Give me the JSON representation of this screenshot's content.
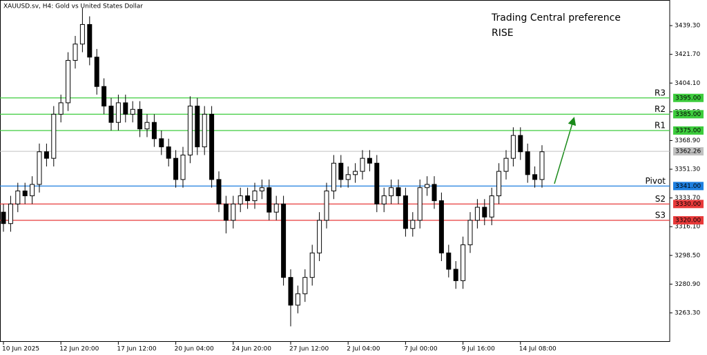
{
  "chart_data": {
    "type": "candlestick",
    "title": "XAUUSD.sv, H4:  Gold vs United States Dollar",
    "annotation": [
      "Trading Central preference",
      "RISE"
    ],
    "annotation_color": "#2ecc40",
    "up_color": "#ffffff",
    "down_color": "#000000",
    "categories": [
      "10 Jun 2025",
      null,
      null,
      null,
      null,
      null,
      null,
      null,
      "12 Jun 20:00",
      null,
      null,
      null,
      null,
      null,
      null,
      null,
      "17 Jun 12:00",
      null,
      null,
      null,
      null,
      null,
      null,
      null,
      "20 Jun 04:00",
      null,
      null,
      null,
      null,
      null,
      null,
      null,
      "24 Jun 20:00",
      null,
      null,
      null,
      null,
      null,
      null,
      null,
      "27 Jun 12:00",
      null,
      null,
      null,
      null,
      null,
      null,
      null,
      "2 Jul 04:00",
      null,
      null,
      null,
      null,
      null,
      null,
      null,
      "7 Jul 00:00",
      null,
      null,
      null,
      null,
      null,
      null,
      null,
      "9 Jul 16:00",
      null,
      null,
      null,
      null,
      null,
      null,
      null,
      "14 Jul 08:00",
      null,
      null,
      null
    ],
    "open": [
      3325,
      3318,
      3330,
      3338,
      3335,
      3342,
      3362,
      3358,
      3385,
      3392,
      3418,
      3428,
      3440,
      3420,
      3402,
      3390,
      3380,
      3392,
      3385,
      3388,
      3376,
      3380,
      3370,
      3365,
      3358,
      3345,
      3360,
      3390,
      3365,
      3385,
      3345,
      3330,
      3320,
      3330,
      3335,
      3332,
      3338,
      3340,
      3325,
      3330,
      3285,
      3268,
      3275,
      3285,
      3300,
      3320,
      3338,
      3355,
      3345,
      3348,
      3350,
      3358,
      3355,
      3330,
      3335,
      3340,
      3335,
      3315,
      3320,
      3340,
      3342,
      3332,
      3300,
      3290,
      3283,
      3305,
      3320,
      3328,
      3322,
      3335,
      3350,
      3358,
      3372,
      3362,
      3348,
      3345
    ],
    "high": [
      3330,
      3335,
      3343,
      3343,
      3347,
      3367,
      3367,
      3390,
      3397,
      3423,
      3433,
      3450,
      3445,
      3425,
      3407,
      3395,
      3397,
      3397,
      3393,
      3393,
      3385,
      3385,
      3375,
      3370,
      3363,
      3365,
      3396,
      3395,
      3390,
      3390,
      3350,
      3335,
      3335,
      3340,
      3340,
      3343,
      3345,
      3345,
      3335,
      3335,
      3290,
      3280,
      3290,
      3305,
      3325,
      3343,
      3360,
      3360,
      3353,
      3355,
      3363,
      3363,
      3360,
      3340,
      3345,
      3345,
      3340,
      3325,
      3345,
      3347,
      3347,
      3337,
      3305,
      3295,
      3310,
      3325,
      3333,
      3333,
      3340,
      3355,
      3363,
      3377,
      3377,
      3367,
      3353,
      3366
    ],
    "low": [
      3313,
      3313,
      3325,
      3330,
      3330,
      3337,
      3353,
      3353,
      3380,
      3387,
      3413,
      3423,
      3415,
      3397,
      3385,
      3375,
      3375,
      3380,
      3380,
      3371,
      3371,
      3365,
      3360,
      3353,
      3340,
      3340,
      3355,
      3360,
      3360,
      3340,
      3325,
      3312,
      3315,
      3325,
      3327,
      3327,
      3333,
      3320,
      3320,
      3280,
      3255,
      3263,
      3270,
      3280,
      3295,
      3315,
      3333,
      3340,
      3340,
      3343,
      3345,
      3350,
      3325,
      3325,
      3330,
      3330,
      3310,
      3310,
      3315,
      3335,
      3327,
      3295,
      3285,
      3278,
      3278,
      3300,
      3315,
      3317,
      3317,
      3330,
      3345,
      3353,
      3357,
      3343,
      3340,
      3340
    ],
    "close": [
      3318,
      3330,
      3338,
      3335,
      3342,
      3362,
      3358,
      3385,
      3392,
      3418,
      3428,
      3440,
      3420,
      3402,
      3390,
      3380,
      3392,
      3385,
      3388,
      3376,
      3380,
      3370,
      3365,
      3358,
      3345,
      3360,
      3390,
      3365,
      3385,
      3345,
      3330,
      3320,
      3330,
      3335,
      3332,
      3338,
      3340,
      3325,
      3330,
      3285,
      3268,
      3275,
      3285,
      3300,
      3320,
      3338,
      3355,
      3345,
      3348,
      3350,
      3358,
      3355,
      3330,
      3335,
      3340,
      3335,
      3315,
      3320,
      3340,
      3342,
      3332,
      3300,
      3290,
      3283,
      3305,
      3320,
      3328,
      3322,
      3335,
      3350,
      3358,
      3372,
      3362,
      3348,
      3345,
      3362
    ],
    "ylim": [
      3245.5,
      3455
    ],
    "yticks": [
      {
        "value": 3439.3,
        "label": "3439.30"
      },
      {
        "value": 3421.7,
        "label": "3421.70"
      },
      {
        "value": 3404.1,
        "label": "3404.10"
      },
      {
        "value": 3386.5,
        "label": "3386.50"
      },
      {
        "value": 3368.9,
        "label": "3368.90"
      },
      {
        "value": 3351.3,
        "label": "3351.30"
      },
      {
        "value": 3333.7,
        "label": "3333.70"
      },
      {
        "value": 3316.1,
        "label": "3316.10"
      },
      {
        "value": 3298.5,
        "label": "3298.50"
      },
      {
        "value": 3280.9,
        "label": "3280.90"
      },
      {
        "value": 3263.3,
        "label": "3263.30"
      }
    ],
    "levels": [
      {
        "name": "R3",
        "value": 3395,
        "value_label": "3395.00",
        "color": "#3dcc3d"
      },
      {
        "name": "R2",
        "value": 3385,
        "value_label": "3385.00",
        "color": "#3dcc3d"
      },
      {
        "name": "R1",
        "value": 3375,
        "value_label": "3375.00",
        "color": "#3dcc3d"
      },
      {
        "name": "Pivot",
        "value": 3341,
        "value_label": "3341.00",
        "color": "#1e7fe0"
      },
      {
        "name": "S2",
        "value": 3330,
        "value_label": "3330.00",
        "color": "#e83a3a"
      },
      {
        "name": "S3",
        "value": 3320,
        "value_label": "3320.00",
        "color": "#e83a3a"
      }
    ],
    "last_price": 3362.26,
    "last_price_color": "#c0c0c0"
  }
}
